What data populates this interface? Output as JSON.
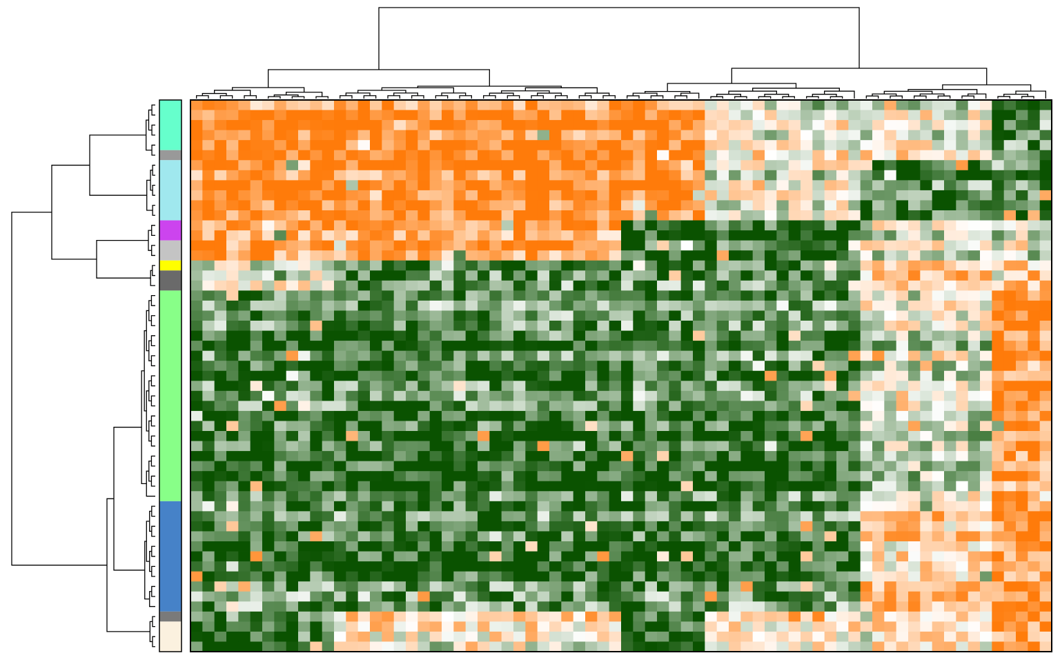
{
  "chart_data": {
    "type": "heatmap",
    "title": "",
    "xlabel": "",
    "ylabel": "",
    "n_rows": 55,
    "n_cols": 72,
    "value_range": [
      -1,
      1
    ],
    "color_scale": {
      "low": "#0a5200",
      "mid": "#ffffff",
      "high": "#ff7b0a"
    },
    "row_dendrogram": true,
    "column_dendrogram": true,
    "row_annotation": {
      "segments": [
        {
          "color": "#66ffcc",
          "rows": 5
        },
        {
          "color": "#999999",
          "rows": 1
        },
        {
          "color": "#a0e8ee",
          "rows": 6
        },
        {
          "color": "#cc44ee",
          "rows": 2
        },
        {
          "color": "#c4c4c4",
          "rows": 2
        },
        {
          "color": "#ffff00",
          "rows": 1
        },
        {
          "color": "#6a6a6a",
          "rows": 2
        },
        {
          "color": "#88ff88",
          "rows": 21
        },
        {
          "color": "#4682c8",
          "rows": 11
        },
        {
          "color": "#7a7a7a",
          "rows": 1
        },
        {
          "color": "#fbf1df",
          "rows": 3
        }
      ]
    },
    "row_blocks": [
      {
        "rows": 6,
        "pattern": [
          "O",
          "O",
          "O",
          "W",
          "W",
          "G"
        ]
      },
      {
        "rows": 6,
        "pattern": [
          "O",
          "O",
          "O",
          "W",
          "G",
          "G"
        ]
      },
      {
        "rows": 4,
        "pattern": [
          "O",
          "O",
          "G",
          "G",
          "W",
          "W"
        ]
      },
      {
        "rows": 3,
        "pattern": [
          "w",
          "G",
          "G",
          "G",
          "o",
          "o"
        ]
      },
      {
        "rows": 21,
        "pattern": [
          "G",
          "G",
          "G",
          "G",
          "w",
          "O"
        ]
      },
      {
        "rows": 11,
        "pattern": [
          "G",
          "G",
          "G",
          "G",
          "o",
          "O"
        ]
      },
      {
        "rows": 4,
        "pattern": [
          "G",
          "o",
          "G",
          "o",
          "o",
          "O"
        ]
      }
    ],
    "column_blocks": [
      {
        "cols": 12
      },
      {
        "cols": 24
      },
      {
        "cols": 7
      },
      {
        "cols": 13
      },
      {
        "cols": 11
      },
      {
        "cols": 5
      }
    ]
  }
}
